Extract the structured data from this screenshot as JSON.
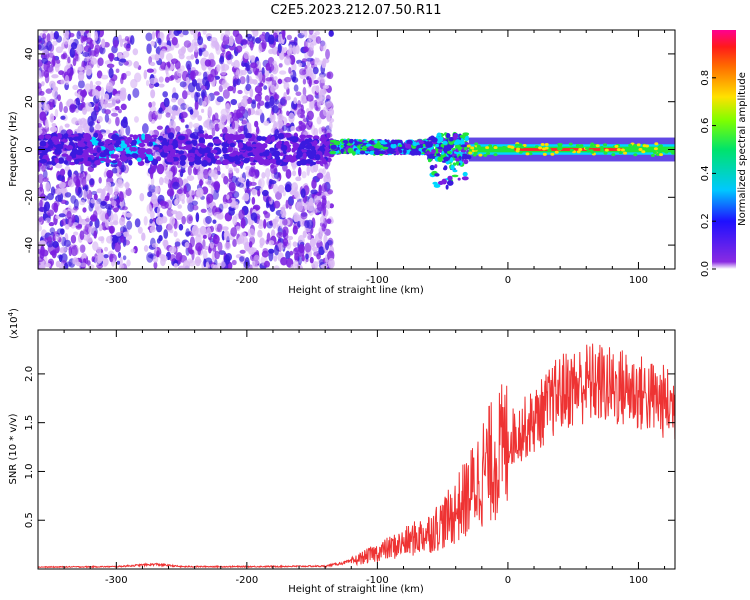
{
  "title": "C2E5.2023.212.07.50.R11",
  "colors": {
    "snr_line": "#ee3333",
    "axis": "#000000",
    "spectrogram_palette": [
      "#ffffff",
      "#d9b8f5",
      "#7b1fe0",
      "#3a1adf",
      "#00d8ff",
      "#22e63a",
      "#ffe100",
      "#ff2a2a",
      "#ff0080"
    ]
  },
  "chart_data": [
    {
      "type": "heatmap",
      "title": "C2E5.2023.212.07.50.R11",
      "xlabel": "Height of straight line (km)",
      "ylabel": "Frequency (Hz)",
      "xlim": [
        -360,
        128
      ],
      "ylim": [
        -50,
        50
      ],
      "xticks": [
        -300,
        -200,
        -100,
        0,
        100
      ],
      "xtick_labels": [
        "-300",
        "-200",
        "-100",
        "0",
        "100"
      ],
      "yticks": [
        -40,
        -20,
        0,
        20,
        40
      ],
      "ytick_labels": [
        "-40",
        "-20",
        "0",
        "20",
        "40"
      ],
      "colorbar": {
        "label": "Normalized spectral amplitude",
        "range": [
          0,
          1
        ],
        "ticks": [
          0.0,
          0.2,
          0.4,
          0.6,
          0.8
        ],
        "tick_labels": [
          "0.0",
          "0.2",
          "0.4",
          "0.6",
          "0.8"
        ]
      },
      "description_of_regions": [
        {
          "x_range": [
            -360,
            -135
          ],
          "freq_range": [
            -50,
            50
          ],
          "amplitude": 0.1
        },
        {
          "x_range": [
            -290,
            -275
          ],
          "freq_range": [
            -50,
            50
          ],
          "amplitude": 0.0
        },
        {
          "x_range": [
            -135,
            -30
          ],
          "freq_center": 1,
          "amplitude_peak": 0.6
        },
        {
          "x_range": [
            -30,
            128
          ],
          "freq_center": 0,
          "amplitude_peak": 0.9
        }
      ]
    },
    {
      "type": "line",
      "xlabel": "Height of straight line (km)",
      "ylabel": "SNR (10 * v/v)",
      "exponent_label": "(x10",
      "exponent_power": "4",
      "exponent_close": ")",
      "xlim": [
        -360,
        128
      ],
      "ylim": [
        0,
        24500
      ],
      "xticks": [
        -300,
        -200,
        -100,
        0,
        100
      ],
      "xtick_labels": [
        "-300",
        "-200",
        "-100",
        "0",
        "100"
      ],
      "yticks": [
        5000,
        10000,
        15000,
        20000
      ],
      "ytick_labels": [
        "0.5",
        "1.0",
        "1.5",
        "2.0"
      ],
      "series": [
        {
          "x": [
            -360,
            -300,
            -270,
            -250,
            -200,
            -140,
            -120,
            -100,
            -80,
            -60,
            -45,
            -30,
            -20,
            -10,
            0,
            10,
            20,
            30,
            40,
            50,
            60,
            70,
            80,
            90,
            100,
            110,
            120,
            128
          ],
          "values": [
            200,
            250,
            500,
            250,
            250,
            300,
            800,
            1800,
            2800,
            4000,
            5500,
            8000,
            10500,
            12000,
            13500,
            14500,
            15500,
            17000,
            18500,
            19000,
            19500,
            19500,
            19000,
            19000,
            18500,
            18000,
            17500,
            17000
          ]
        }
      ]
    }
  ]
}
